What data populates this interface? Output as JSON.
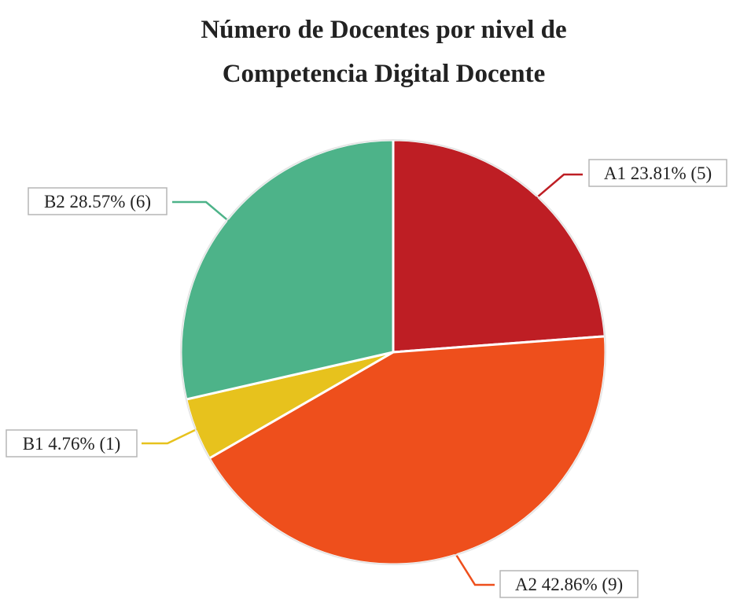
{
  "chart_data": {
    "type": "pie",
    "title_lines": [
      "Número de Docentes por nivel de",
      "Competencia Digital Docente"
    ],
    "slices": [
      {
        "name": "A1",
        "value": 5,
        "percent": 23.81,
        "label": "A1 23.81% (5)",
        "color": "#BE1E24",
        "label_side": "right"
      },
      {
        "name": "A2",
        "value": 9,
        "percent": 42.86,
        "label": "A2 42.86% (9)",
        "color": "#EE4F1C",
        "label_side": "right"
      },
      {
        "name": "B1",
        "value": 1,
        "percent": 4.76,
        "label": "B1 4.76% (1)",
        "color": "#E7C21D",
        "label_side": "left"
      },
      {
        "name": "B2",
        "value": 6,
        "percent": 28.57,
        "label": "B2 28.57% (6)",
        "color": "#4DB389",
        "label_side": "left"
      }
    ],
    "start": "12 o'clock",
    "direction": "clockwise",
    "legend": "none"
  }
}
